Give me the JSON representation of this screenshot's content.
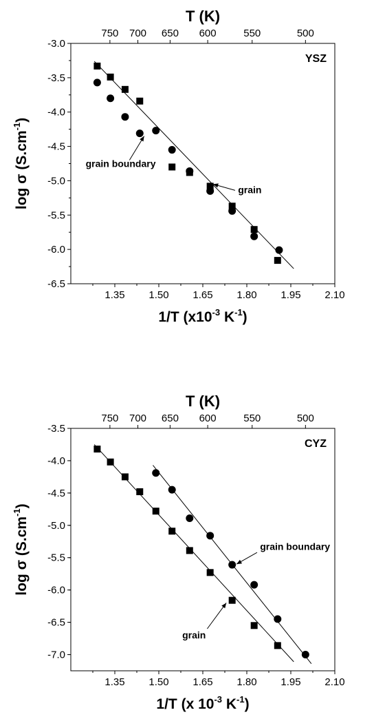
{
  "chart_data": [
    {
      "type": "scatter",
      "panel_label": "YSZ",
      "xlabel_pre": "1/T (x10",
      "xlabel_exp": "-3",
      "xlabel_mid": " K",
      "xlabel_exp2": "-1",
      "xlabel_post": ")",
      "ylabel_pre": "log σ (S.cm",
      "ylabel_exp": "-1",
      "ylabel_post": ")",
      "top_axis_label": "T (K)",
      "xlim": [
        1.2,
        2.1
      ],
      "ylim": [
        -6.5,
        -3.0
      ],
      "xticks": [
        1.35,
        1.5,
        1.65,
        1.8,
        1.95,
        2.1
      ],
      "xtick_labels": [
        "1.35",
        "1.50",
        "1.65",
        "1.80",
        "1.95",
        "2.10"
      ],
      "yticks": [
        -3.0,
        -3.5,
        -4.0,
        -4.5,
        -5.0,
        -5.5,
        -6.0,
        -6.5
      ],
      "ytick_labels": [
        "-3.0",
        "-3.5",
        "-4.0",
        "-4.5",
        "-5.0",
        "-5.5",
        "-6.0",
        "-6.5"
      ],
      "top_ticks": [
        750,
        700,
        650,
        600,
        550,
        500
      ],
      "top_tick_labels": [
        "750",
        "700",
        "650",
        "600",
        "550",
        "500"
      ],
      "series": [
        {
          "marker": "square",
          "x": [
            1.29,
            1.335,
            1.385,
            1.435,
            1.545,
            1.605,
            1.675,
            1.75,
            1.825,
            1.905
          ],
          "y": [
            -3.33,
            -3.49,
            -3.67,
            -3.84,
            -4.8,
            -4.88,
            -5.08,
            -5.37,
            -5.71,
            -6.16
          ]
        },
        {
          "marker": "circle",
          "x": [
            1.29,
            1.335,
            1.385,
            1.435,
            1.49,
            1.545,
            1.605,
            1.675,
            1.75,
            1.825,
            1.91
          ],
          "y": [
            -3.57,
            -3.8,
            -4.07,
            -4.31,
            -4.27,
            -4.55,
            -4.86,
            -5.15,
            -5.44,
            -5.81,
            -6.01
          ]
        }
      ],
      "fit_lines": [
        {
          "x": [
            1.28,
            1.96
          ],
          "y": [
            -3.26,
            -6.28
          ]
        }
      ],
      "annotations": [
        {
          "text": "grain boundary",
          "x": 1.37,
          "y": -4.8,
          "anchor": "middle",
          "arrow_from": [
            1.4,
            -4.7
          ],
          "arrow_to": [
            1.45,
            -4.35
          ]
        },
        {
          "text": "grain",
          "x": 1.77,
          "y": -5.18,
          "anchor": "start",
          "arrow_from": [
            1.76,
            -5.14
          ],
          "arrow_to": [
            1.685,
            -5.05
          ]
        }
      ]
    },
    {
      "type": "scatter",
      "panel_label": "CYZ",
      "xlabel_pre": "1/T (x 10",
      "xlabel_exp": "-3",
      "xlabel_mid": " K",
      "xlabel_exp2": "-1",
      "xlabel_post": ")",
      "ylabel_pre": "log σ (S.cm",
      "ylabel_exp": "-1",
      "ylabel_post": ")",
      "top_axis_label": "T (K)",
      "xlim": [
        1.2,
        2.1
      ],
      "ylim": [
        -7.25,
        -3.5
      ],
      "xticks": [
        1.35,
        1.5,
        1.65,
        1.8,
        1.95,
        2.1
      ],
      "xtick_labels": [
        "1.35",
        "1.50",
        "1.65",
        "1.80",
        "1.95",
        "2.10"
      ],
      "yticks": [
        -3.5,
        -4.0,
        -4.5,
        -5.0,
        -5.5,
        -6.0,
        -6.5,
        -7.0
      ],
      "ytick_labels": [
        "-3.5",
        "-4.0",
        "-4.5",
        "-5.0",
        "-5.5",
        "-6.0",
        "-6.5",
        "-7.0"
      ],
      "top_ticks": [
        750,
        700,
        650,
        600,
        550,
        500
      ],
      "top_tick_labels": [
        "750",
        "700",
        "650",
        "600",
        "550",
        "500"
      ],
      "series": [
        {
          "marker": "square",
          "x": [
            1.29,
            1.335,
            1.385,
            1.435,
            1.49,
            1.545,
            1.605,
            1.675,
            1.75,
            1.825,
            1.905
          ],
          "y": [
            -3.82,
            -4.02,
            -4.25,
            -4.48,
            -4.78,
            -5.09,
            -5.39,
            -5.73,
            -6.16,
            -6.55,
            -6.86
          ]
        },
        {
          "marker": "circle",
          "x": [
            1.49,
            1.545,
            1.605,
            1.675,
            1.75,
            1.825,
            1.905,
            2.0
          ],
          "y": [
            -4.19,
            -4.45,
            -4.89,
            -5.16,
            -5.61,
            -5.92,
            -6.45,
            -7.0
          ]
        }
      ],
      "fit_lines": [
        {
          "x": [
            1.28,
            1.96
          ],
          "y": [
            -3.75,
            -7.11
          ]
        },
        {
          "x": [
            1.48,
            2.02
          ],
          "y": [
            -4.07,
            -7.14
          ]
        }
      ],
      "annotations": [
        {
          "text": "grain boundary",
          "x": 1.845,
          "y": -5.38,
          "anchor": "start",
          "arrow_from": [
            1.835,
            -5.42
          ],
          "arrow_to": [
            1.765,
            -5.6
          ]
        },
        {
          "text": "grain",
          "x": 1.62,
          "y": -6.75,
          "anchor": "middle",
          "arrow_from": [
            1.665,
            -6.6
          ],
          "arrow_to": [
            1.73,
            -6.2
          ]
        }
      ]
    }
  ]
}
